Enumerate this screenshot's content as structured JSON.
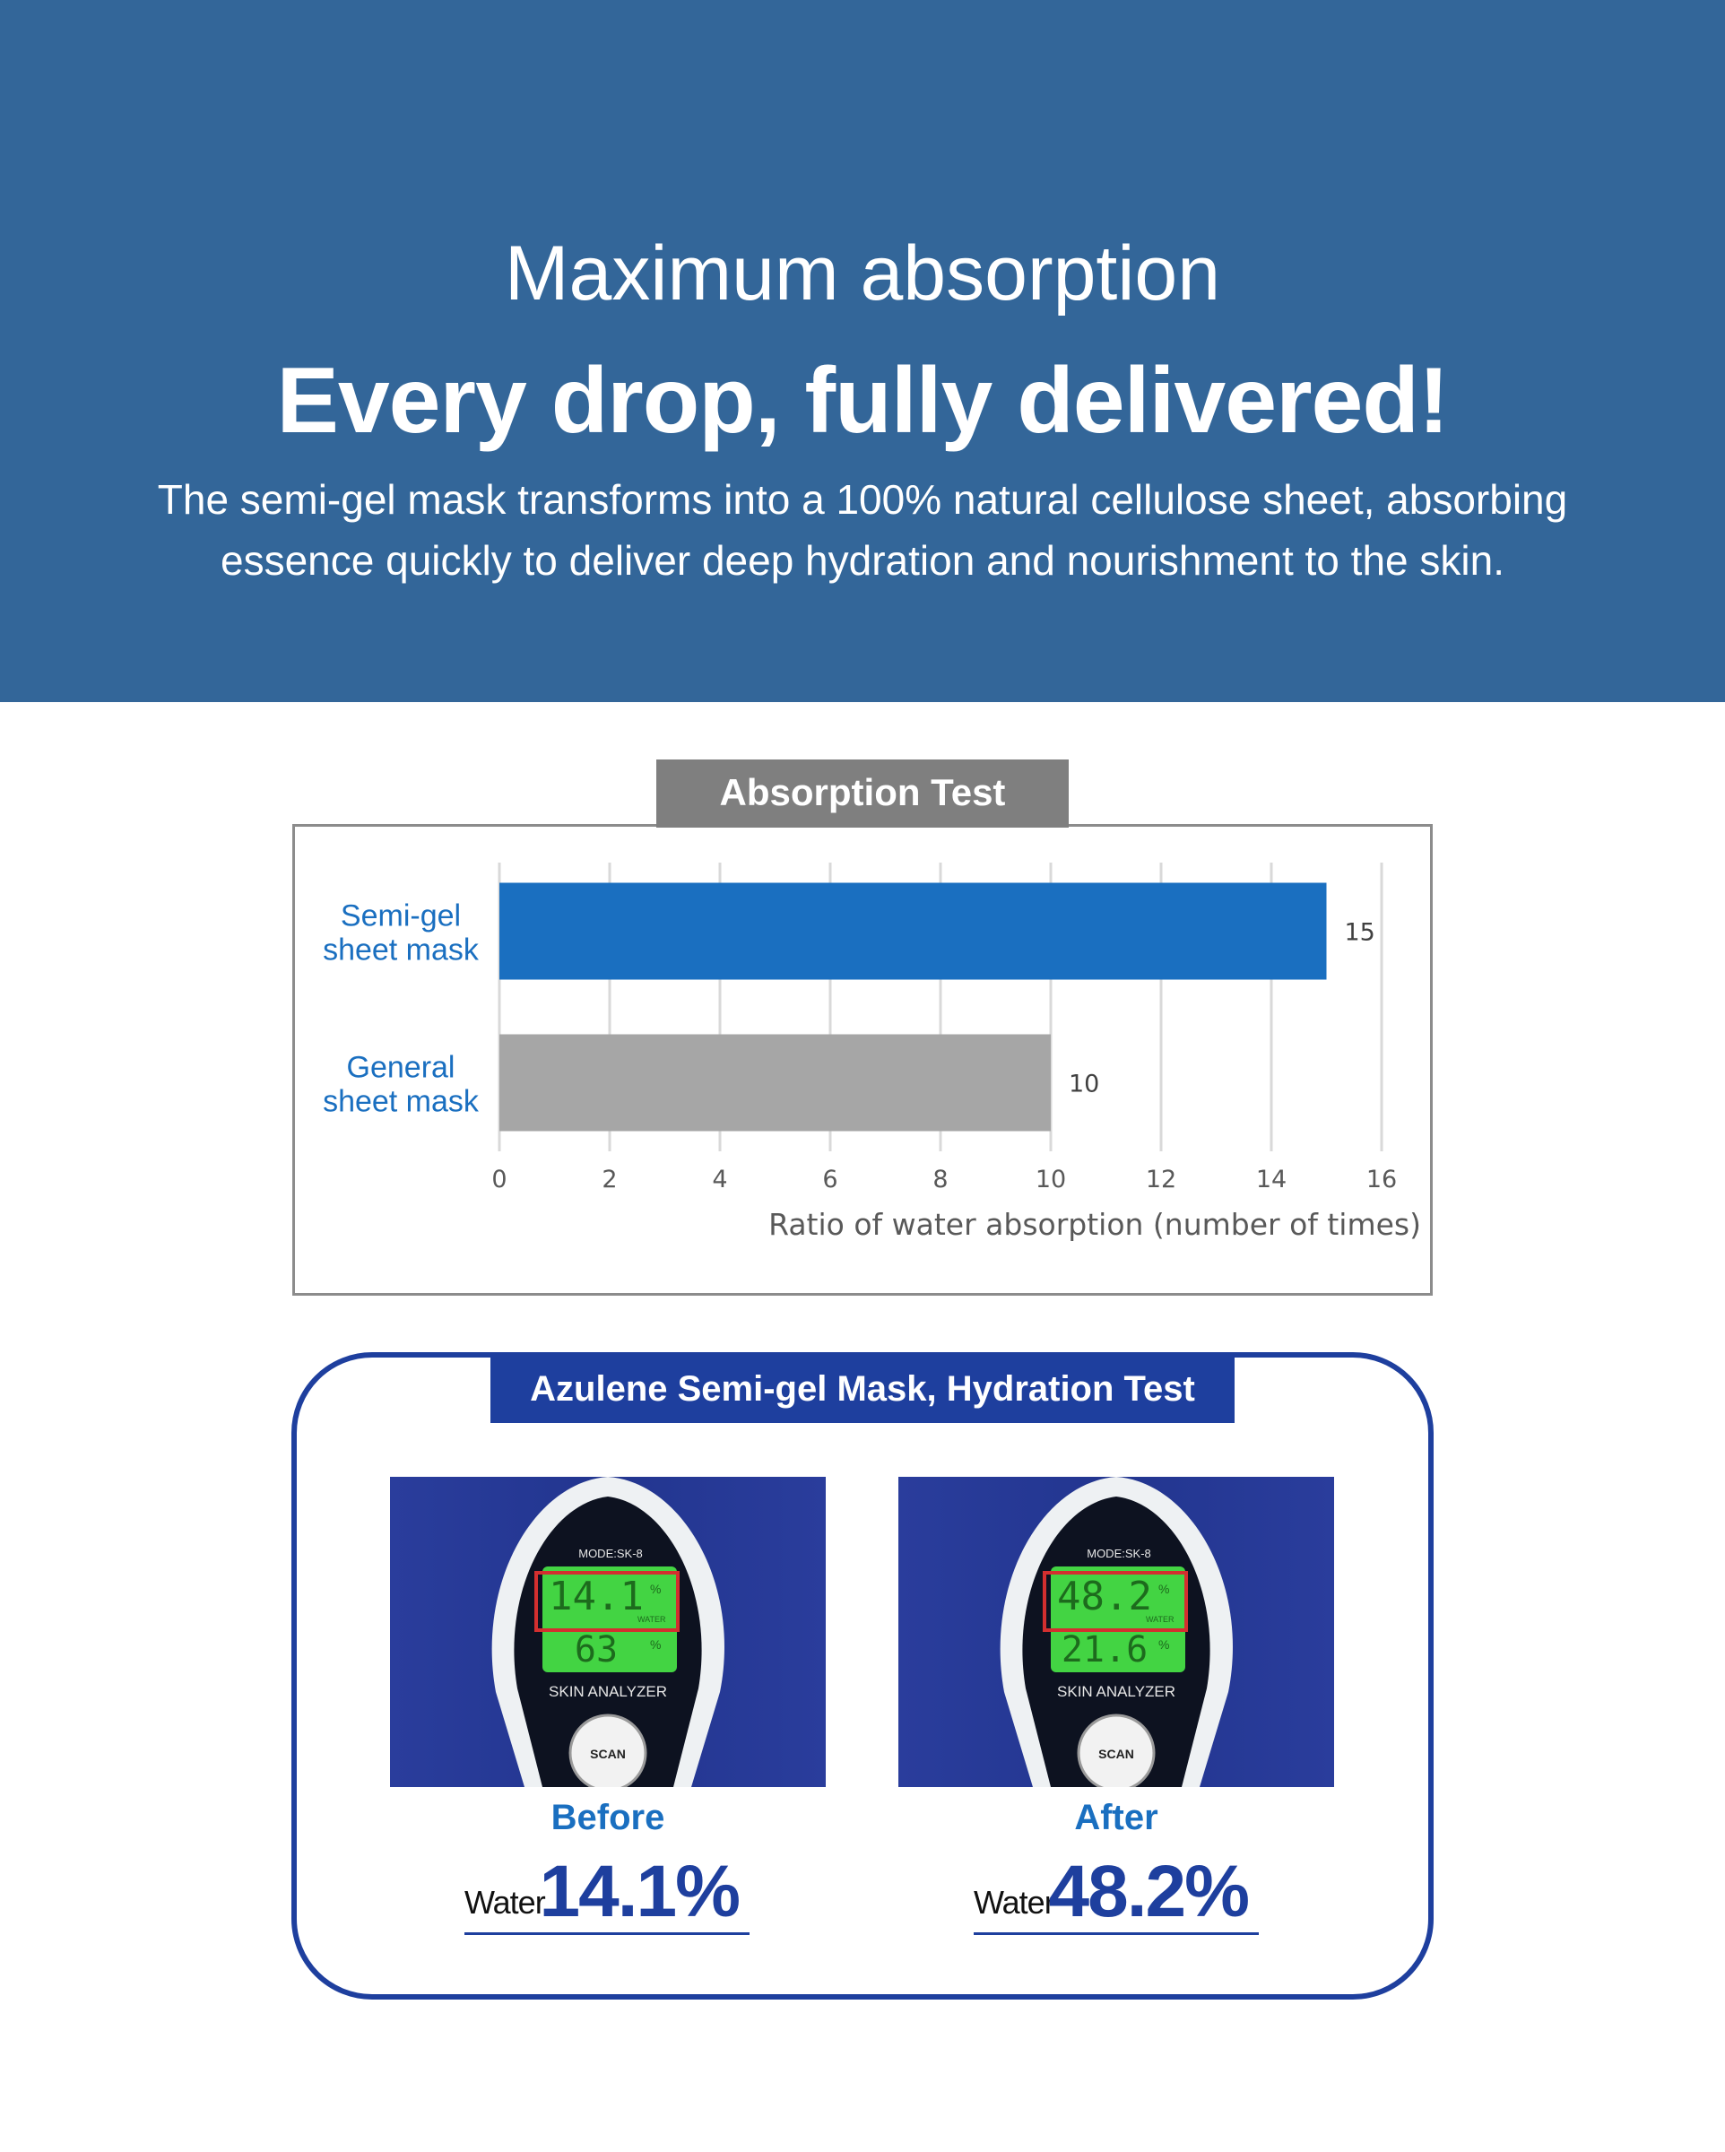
{
  "hero": {
    "subtitle": "Maximum absorption",
    "title": "Every drop, fully delivered!",
    "description": "The semi-gel mask transforms into a 100% natural cellulose sheet, absorbing essence quickly to deliver deep hydration and nourishment to the skin."
  },
  "absorption": {
    "tab_label": "Absorption Test"
  },
  "chart_data": {
    "type": "bar",
    "orientation": "horizontal",
    "categories": [
      [
        "Semi-gel",
        "sheet mask"
      ],
      [
        "General",
        "sheet mask"
      ]
    ],
    "values": [
      15,
      10
    ],
    "data_labels": [
      "15",
      "10"
    ],
    "bar_colors": [
      "#1a6fc0",
      "#a6a6a6"
    ],
    "category_color": "#1a6fc0",
    "xlabel": "Ratio of water absorption (number of times)",
    "xlim": [
      0,
      16
    ],
    "xticks": [
      0,
      2,
      4,
      6,
      8,
      10,
      12,
      14,
      16
    ],
    "grid": true,
    "legend": "none"
  },
  "hydration": {
    "tab_label": "Azulene Semi-gel Mask, Hydration Test",
    "device_mode": "MODE:SK-8",
    "device_name": "SKIN ANALYZER",
    "scan_label": "SCAN",
    "water_indicator": "WATER",
    "before": {
      "state": "Before",
      "water_word": "Water",
      "water_value": "14.1%",
      "display_top": "14.1",
      "display_bottom": "63"
    },
    "after": {
      "state": "After",
      "water_word": "Water",
      "water_value": "48.2%",
      "display_top": "48.2",
      "display_bottom": "21.6"
    }
  },
  "colors": {
    "hero_bg": "#336699",
    "accent_blue": "#1a6fc0",
    "navy": "#1e3f9e",
    "grey_tab": "#7f7f7f",
    "lcd_green": "#43d443"
  }
}
